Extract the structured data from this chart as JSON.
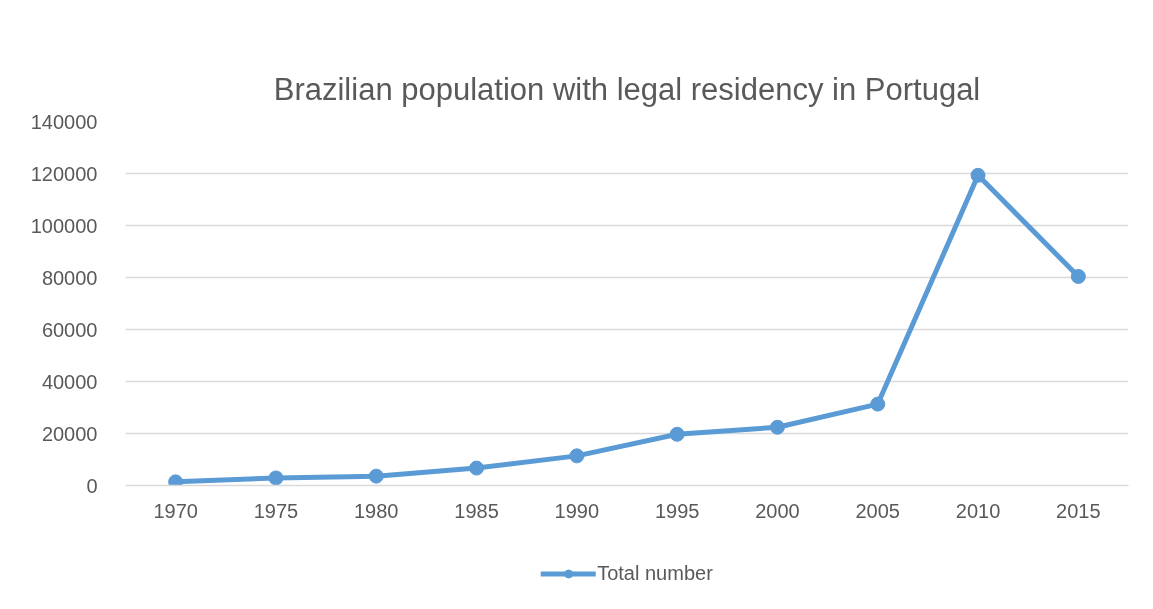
{
  "chart_data": {
    "type": "line",
    "title": "Brazilian population with legal residency in Portugal",
    "categories": [
      "1970",
      "1975",
      "1980",
      "1985",
      "1990",
      "1995",
      "2000",
      "2005",
      "2010",
      "2015"
    ],
    "series": [
      {
        "name": "Total number",
        "color": "#5b9bd5",
        "values": [
          1400,
          2900,
          3600,
          6700,
          11400,
          19700,
          22400,
          31300,
          119300,
          80400
        ]
      }
    ],
    "ylim": [
      0,
      140000
    ],
    "yticks": [
      0,
      20000,
      40000,
      60000,
      80000,
      100000,
      120000,
      140000
    ],
    "grid": "y",
    "legend": "bottom",
    "marker": "circle",
    "line_style": "solid"
  }
}
